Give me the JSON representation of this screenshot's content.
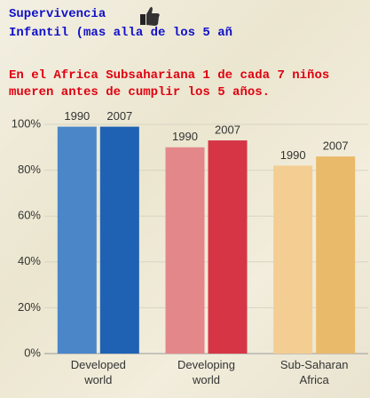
{
  "title_lines": [
    "Supervivencia",
    "Infantil (mas alla de los 5 añ"
  ],
  "subtitle_lines": [
    "En el Africa Subsahariana 1 de cada 7 niños",
    "mueren antes de cumplir los 5 años."
  ],
  "chart_data": {
    "type": "bar",
    "categories": [
      "Developed world",
      "Developing world",
      "Sub-Saharan Africa"
    ],
    "series": [
      {
        "name": "1990",
        "colors": [
          "#4a86c8",
          "#e4878a",
          "#f4cd92"
        ],
        "values": [
          99,
          90,
          82
        ]
      },
      {
        "name": "2007",
        "colors": [
          "#1f62b4",
          "#d63546",
          "#e9ba6a"
        ],
        "values": [
          99,
          93,
          86
        ]
      }
    ],
    "ylim": [
      0,
      100
    ],
    "yticks": [
      {
        "value": 0,
        "label": "0%"
      },
      {
        "value": 20,
        "label": "20%"
      },
      {
        "value": 40,
        "label": "40%"
      },
      {
        "value": 60,
        "label": "60%"
      },
      {
        "value": 80,
        "label": "80%"
      },
      {
        "value": 100,
        "label": "100%"
      }
    ],
    "grid": true
  }
}
